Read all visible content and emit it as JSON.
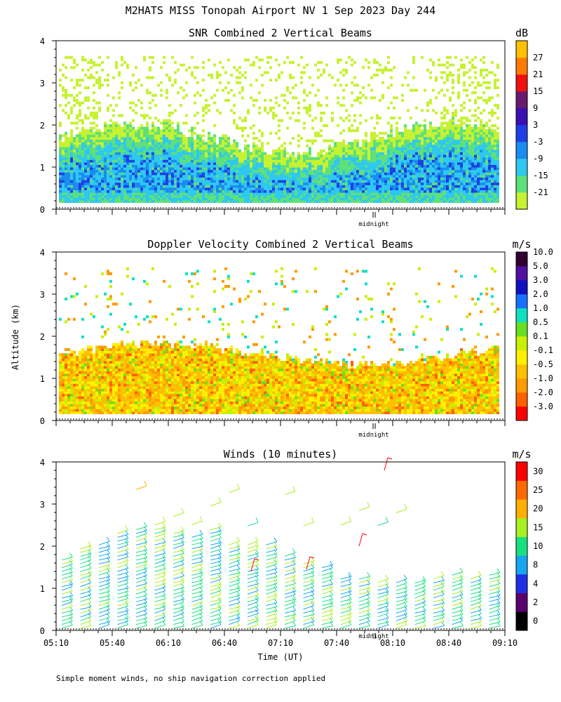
{
  "page": {
    "title": "M2HATS MISS Tonopah Airport NV    1 Sep 2023 Day 244",
    "footnote": "Simple moment winds, no ship navigation correction applied"
  },
  "colors": {
    "snr_scale": [
      "#c6f232",
      "#5ee07a",
      "#2ec8f0",
      "#1a8cf0",
      "#1f3fe6",
      "#3a0fb4",
      "#6a1a70",
      "#f01010",
      "#ff7a00",
      "#ffc000"
    ],
    "vel_scale": [
      "#ff0000",
      "#ff6000",
      "#ff9a00",
      "#ffc000",
      "#fff000",
      "#c8f000",
      "#66e020",
      "#10e0c0",
      "#1870ff",
      "#1010c0",
      "#5010a0",
      "#300030"
    ],
    "wind_scale": [
      "#000000",
      "#5a006e",
      "#1f2fe6",
      "#16a6f0",
      "#18e080",
      "#a8f020",
      "#ffb000",
      "#ff6a00",
      "#ff0000"
    ]
  },
  "chart_data": [
    {
      "type": "heatmap",
      "title": "SNR Combined 2 Vertical Beams",
      "ylabel": "",
      "xlabel": "",
      "yticks": [
        "0",
        "1",
        "2",
        "3",
        "4"
      ],
      "ylim": [
        0,
        4
      ],
      "xlim": [
        "05:10",
        "09:10"
      ],
      "midnight_label": "midnight",
      "colorbar": {
        "unit": "dB",
        "labels": [
          "-21",
          "-15",
          "-9",
          "-3",
          "3",
          "9",
          "15",
          "21",
          "27"
        ]
      }
    },
    {
      "type": "heatmap",
      "title": "Doppler Velocity Combined 2 Vertical Beams",
      "ylabel": "Altitude (km)",
      "xlabel": "",
      "yticks": [
        "0",
        "1",
        "2",
        "3",
        "4"
      ],
      "ylim": [
        0,
        4
      ],
      "xlim": [
        "05:10",
        "09:10"
      ],
      "midnight_label": "midnight",
      "colorbar": {
        "unit": "m/s",
        "labels": [
          "-3.0",
          "-2.0",
          "-1.0",
          "-0.5",
          "-0.1",
          "0.1",
          "0.5",
          "1.0",
          "2.0",
          "3.0",
          "5.0",
          "10.0"
        ]
      }
    },
    {
      "type": "scatter",
      "title": "Winds (10 minutes)",
      "ylabel": "",
      "xlabel": "Time (UT)",
      "yticks": [
        "0",
        "1",
        "2",
        "3",
        "4"
      ],
      "ylim": [
        0,
        4
      ],
      "xticks": [
        "05:10",
        "05:40",
        "06:10",
        "06:40",
        "07:10",
        "07:40",
        "08:10",
        "08:40",
        "09:10"
      ],
      "midnight_label": "midnight",
      "colorbar": {
        "unit": "m/s",
        "labels": [
          "0",
          "2",
          "4",
          "8",
          "10",
          "15",
          "20",
          "25",
          "30"
        ]
      }
    }
  ]
}
